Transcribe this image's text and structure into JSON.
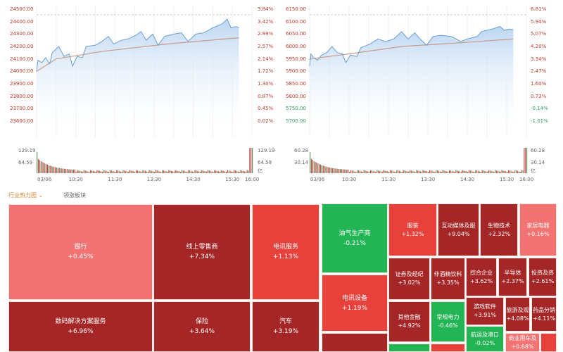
{
  "colors": {
    "up_strong": "#a52626",
    "up": "#e8403a",
    "up_light": "#f37372",
    "down": "#22b455",
    "line": "#6a9fd0",
    "avg": "#c89a8a",
    "price_up": "#c0392b",
    "price_down": "#2e9e5a"
  },
  "charts": [
    {
      "price_ticks": [
        "24500.00",
        "24400.00",
        "24300.00",
        "24200.00",
        "24100.00",
        "24000.00",
        "23900.00",
        "23800.00",
        "23700.00",
        "23600.00"
      ],
      "pct_ticks": [
        "3.84%",
        "3.42%",
        "2.99%",
        "2.57%",
        "2.14%",
        "1.72%",
        "1.30%",
        "0.87%",
        "0.45%",
        "0.02%"
      ],
      "ylim": [
        23600,
        24500
      ],
      "vol_ticks": [
        "129.19",
        "64.59"
      ],
      "vol_unit": "亿",
      "time_ticks": [
        "03/06",
        "10:30",
        "11:30",
        "13:30",
        "14:30",
        "15:30",
        "16:00"
      ],
      "price": [
        [
          0,
          24000
        ],
        [
          2,
          24090
        ],
        [
          8,
          24070
        ],
        [
          14,
          24110
        ],
        [
          20,
          24060
        ],
        [
          24,
          24150
        ],
        [
          34,
          24200
        ],
        [
          42,
          24120
        ],
        [
          50,
          24140
        ],
        [
          55,
          24040
        ],
        [
          62,
          24120
        ],
        [
          70,
          24110
        ],
        [
          76,
          24200
        ],
        [
          90,
          24210
        ],
        [
          100,
          24240
        ],
        [
          110,
          24280
        ],
        [
          118,
          24220
        ],
        [
          130,
          24250
        ],
        [
          140,
          24260
        ],
        [
          152,
          24290
        ],
        [
          160,
          24320
        ],
        [
          168,
          24250
        ],
        [
          178,
          24300
        ],
        [
          186,
          24210
        ],
        [
          196,
          24280
        ],
        [
          210,
          24300
        ],
        [
          222,
          24310
        ],
        [
          232,
          24240
        ],
        [
          244,
          24300
        ],
        [
          256,
          24310
        ],
        [
          270,
          24350
        ],
        [
          284,
          24380
        ],
        [
          292,
          24420
        ],
        [
          298,
          24350
        ],
        [
          305,
          24360
        ],
        [
          310,
          24350
        ]
      ],
      "avg": [
        [
          0,
          24000
        ],
        [
          30,
          24100
        ],
        [
          100,
          24160
        ],
        [
          200,
          24220
        ],
        [
          310,
          24270
        ]
      ]
    },
    {
      "price_ticks": [
        "6150.00",
        "6100.00",
        "6050.00",
        "6000.00",
        "5950.00",
        "5900.00",
        "5850.00",
        "5800.00",
        "5750.00",
        "5700.00"
      ],
      "pct_ticks": [
        "6.81%",
        "5.94%",
        "5.07%",
        "4.20%",
        "3.34%",
        "2.47%",
        "1.60%",
        "0.73%",
        "-0.14%",
        "-1.01%"
      ],
      "ylim": [
        5700,
        6150
      ],
      "vol_ticks": [
        "60.28",
        "30.14"
      ],
      "vol_unit": "亿",
      "time_ticks": [
        "03/06",
        "10:30",
        "11:30",
        "13:30",
        "14:30",
        "15:30",
        "16:00"
      ],
      "price": [
        [
          0,
          5920
        ],
        [
          2,
          5970
        ],
        [
          6,
          5955
        ],
        [
          12,
          5945
        ],
        [
          18,
          5965
        ],
        [
          26,
          5975
        ],
        [
          34,
          6000
        ],
        [
          42,
          5975
        ],
        [
          50,
          5970
        ],
        [
          55,
          5935
        ],
        [
          62,
          5965
        ],
        [
          72,
          5960
        ],
        [
          78,
          5995
        ],
        [
          92,
          6010
        ],
        [
          104,
          6030
        ],
        [
          116,
          6020
        ],
        [
          128,
          6030
        ],
        [
          140,
          6060
        ],
        [
          150,
          6030
        ],
        [
          160,
          6055
        ],
        [
          170,
          6025
        ],
        [
          178,
          6005
        ],
        [
          188,
          6040
        ],
        [
          200,
          6045
        ],
        [
          216,
          6040
        ],
        [
          230,
          6020
        ],
        [
          240,
          6030
        ],
        [
          255,
          6040
        ],
        [
          262,
          6060
        ],
        [
          278,
          6070
        ],
        [
          290,
          6080
        ],
        [
          296,
          6065
        ],
        [
          303,
          6070
        ],
        [
          310,
          6068
        ]
      ],
      "avg": [
        [
          0,
          5950
        ],
        [
          60,
          5970
        ],
        [
          140,
          6000
        ],
        [
          230,
          6015
        ],
        [
          310,
          6030
        ]
      ]
    }
  ],
  "tabs": [
    "行业热力图",
    "领涨板块"
  ],
  "tiles": [
    {
      "name": "银行",
      "chg": "+0.45%",
      "c": "up_light"
    },
    {
      "name": "线上零售商",
      "chg": "+7.34%",
      "c": "up_strong"
    },
    {
      "name": "电讯服务",
      "chg": "+1.13%",
      "c": "up"
    },
    {
      "name": "数码解决方案服务",
      "chg": "+6.96%",
      "c": "up_strong"
    },
    {
      "name": "保险",
      "chg": "+3.64%",
      "c": "up_strong"
    },
    {
      "name": "汽车",
      "chg": "+3.19%",
      "c": "up_strong"
    },
    {
      "name": "油气生产商",
      "chg": "-0.21%",
      "c": "down"
    },
    {
      "name": "电讯设备",
      "chg": "+1.19%",
      "c": "up"
    },
    {
      "name": "服装",
      "chg": "+1.32%",
      "c": "up"
    },
    {
      "name": "互动媒体及服",
      "chg": "+9.04%",
      "c": "up_strong"
    },
    {
      "name": "生物技术",
      "chg": "+2.32%",
      "c": "up_strong"
    },
    {
      "name": "家居电器",
      "chg": "+0.16%",
      "c": "up_light"
    },
    {
      "name": "证券及经纪",
      "chg": "+3.02%",
      "c": "up_strong"
    },
    {
      "name": "非酒精饮料",
      "chg": "+3.35%",
      "c": "up_strong"
    },
    {
      "name": "综合企业",
      "chg": "+3.62%",
      "c": "up_strong"
    },
    {
      "name": "半导体",
      "chg": "+2.37%",
      "c": "up_strong"
    },
    {
      "name": "投资及资",
      "chg": "+2.61%",
      "c": "up_strong"
    },
    {
      "name": "其他金融",
      "chg": "+4.92%",
      "c": "up_strong"
    },
    {
      "name": "常规电力",
      "chg": "-0.46%",
      "c": "down"
    },
    {
      "name": "游戏软件",
      "chg": "+3.91%",
      "c": "up_strong"
    },
    {
      "name": "旅游及观",
      "chg": "+4.08%",
      "c": "up_strong"
    },
    {
      "name": "药品分销",
      "chg": "+4.11%",
      "c": "up_strong"
    },
    {
      "name": "航运及港口",
      "chg": "-0.02%",
      "c": "down"
    },
    {
      "name": "商业用车及",
      "chg": "+0.68%",
      "c": "up_light"
    }
  ]
}
